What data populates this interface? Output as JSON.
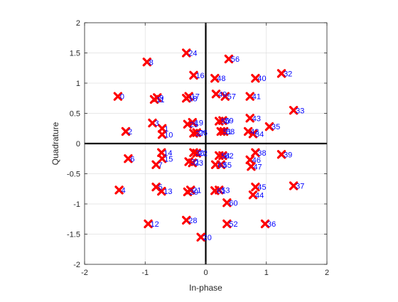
{
  "chart_data": {
    "type": "scatter",
    "title": "",
    "xlabel": "In-phase",
    "ylabel": "Quadrature",
    "xlim": [
      -2,
      2
    ],
    "ylim": [
      -2,
      2
    ],
    "xticks": [
      -2,
      -1,
      0,
      1,
      2
    ],
    "yticks": [
      -2,
      -1.5,
      -1,
      -0.5,
      0,
      0.5,
      1,
      1.5,
      2
    ],
    "grid": true,
    "marker": "x",
    "marker_color": "#ff0000",
    "label_color": "#0000ff",
    "axis_line_color": "#000000",
    "points": [
      {
        "label": "0",
        "x": -1.45,
        "y": 0.78
      },
      {
        "label": "1",
        "x": -0.72,
        "y": 0.25
      },
      {
        "label": "2",
        "x": -1.32,
        "y": 0.2
      },
      {
        "label": "3",
        "x": -0.88,
        "y": 0.34
      },
      {
        "label": "4",
        "x": -1.43,
        "y": -0.77
      },
      {
        "label": "5",
        "x": -0.82,
        "y": -0.72
      },
      {
        "label": "6",
        "x": -1.28,
        "y": -0.25
      },
      {
        "label": "7",
        "x": -0.82,
        "y": -0.35
      },
      {
        "label": "8",
        "x": -0.97,
        "y": 1.35
      },
      {
        "label": "9",
        "x": -0.8,
        "y": 0.76
      },
      {
        "label": "10",
        "x": -0.72,
        "y": 0.15
      },
      {
        "label": "11",
        "x": -0.85,
        "y": 0.73
      },
      {
        "label": "12",
        "x": -0.95,
        "y": -1.33
      },
      {
        "label": "13",
        "x": -0.73,
        "y": -0.79
      },
      {
        "label": "14",
        "x": -0.73,
        "y": -0.15
      },
      {
        "label": "15",
        "x": -0.72,
        "y": -0.25
      },
      {
        "label": "16",
        "x": -0.2,
        "y": 1.13
      },
      {
        "label": "17",
        "x": -0.28,
        "y": 0.78
      },
      {
        "label": "18",
        "x": -0.32,
        "y": 0.75
      },
      {
        "label": "19",
        "x": -0.22,
        "y": 0.35
      },
      {
        "label": "20",
        "x": -0.08,
        "y": -1.55
      },
      {
        "label": "21",
        "x": -0.25,
        "y": -0.77
      },
      {
        "label": "22",
        "x": -0.15,
        "y": -0.16
      },
      {
        "label": "23",
        "x": -0.22,
        "y": -0.32
      },
      {
        "label": "24",
        "x": -0.32,
        "y": 1.5
      },
      {
        "label": "25",
        "x": -0.3,
        "y": 0.32
      },
      {
        "label": "26",
        "x": -0.15,
        "y": 0.18
      },
      {
        "label": "27",
        "x": -0.2,
        "y": 0.17
      },
      {
        "label": "28",
        "x": -0.32,
        "y": -1.27
      },
      {
        "label": "29",
        "x": -0.3,
        "y": -0.8
      },
      {
        "label": "30",
        "x": -0.2,
        "y": -0.15
      },
      {
        "label": "31",
        "x": -0.28,
        "y": -0.3
      },
      {
        "label": "32",
        "x": 1.25,
        "y": 1.16
      },
      {
        "label": "33",
        "x": 1.45,
        "y": 0.55
      },
      {
        "label": "34",
        "x": 0.78,
        "y": 0.16
      },
      {
        "label": "35",
        "x": 1.05,
        "y": 0.28
      },
      {
        "label": "36",
        "x": 0.98,
        "y": -1.33
      },
      {
        "label": "37",
        "x": 1.45,
        "y": -0.7
      },
      {
        "label": "38",
        "x": 0.82,
        "y": -0.15
      },
      {
        "label": "39",
        "x": 1.25,
        "y": -0.18
      },
      {
        "label": "40",
        "x": 0.82,
        "y": 1.08
      },
      {
        "label": "41",
        "x": 0.73,
        "y": 0.78
      },
      {
        "label": "42",
        "x": 0.7,
        "y": 0.2
      },
      {
        "label": "43",
        "x": 0.73,
        "y": 0.42
      },
      {
        "label": "44",
        "x": 0.78,
        "y": -0.85
      },
      {
        "label": "45",
        "x": 0.82,
        "y": -0.72
      },
      {
        "label": "46",
        "x": 0.73,
        "y": -0.27
      },
      {
        "label": "47",
        "x": 0.75,
        "y": -0.38
      },
      {
        "label": "48",
        "x": 0.15,
        "y": 1.08
      },
      {
        "label": "49",
        "x": 0.17,
        "y": 0.82
      },
      {
        "label": "50",
        "x": 0.22,
        "y": 0.37
      },
      {
        "label": "51",
        "x": 0.25,
        "y": 0.2
      },
      {
        "label": "52",
        "x": 0.35,
        "y": -1.33
      },
      {
        "label": "53",
        "x": 0.22,
        "y": -0.77
      },
      {
        "label": "54",
        "x": 0.22,
        "y": -0.2
      },
      {
        "label": "55",
        "x": 0.25,
        "y": -0.35
      },
      {
        "label": "56",
        "x": 0.38,
        "y": 1.4
      },
      {
        "label": "57",
        "x": 0.32,
        "y": 0.78
      },
      {
        "label": "58",
        "x": 0.3,
        "y": 0.2
      },
      {
        "label": "59",
        "x": 0.28,
        "y": 0.38
      },
      {
        "label": "60",
        "x": 0.35,
        "y": -0.98
      },
      {
        "label": "61",
        "x": 0.15,
        "y": -0.78
      },
      {
        "label": "62",
        "x": 0.28,
        "y": -0.2
      },
      {
        "label": "63",
        "x": 0.16,
        "y": -0.35
      }
    ]
  }
}
